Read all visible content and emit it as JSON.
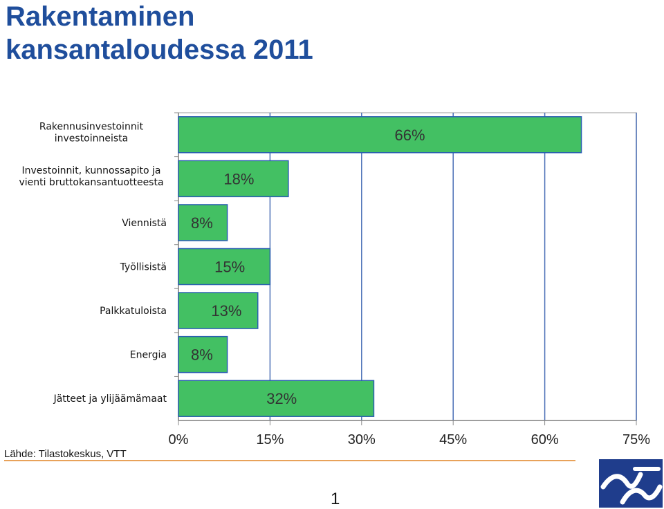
{
  "title": {
    "line1": "Rakentaminen",
    "line2": "kansantaloudessa 2011"
  },
  "source": "Lähde: Tilastokeskus, VTT",
  "page_number": "1",
  "logo": {
    "icon": "vtt-logo-icon",
    "color": "#1f3d8c"
  },
  "colors": {
    "bar": "#43c063",
    "bar_border": "#2a5fb0",
    "grid": "#4a6fb6",
    "title": "#1f4e9c"
  },
  "chart_data": {
    "type": "bar",
    "orientation": "horizontal",
    "categories": [
      "Rakennusinvestoinnit investoinneista",
      "Investoinnit, kunnossapito ja vienti bruttokansantuotteesta",
      "Viennistä",
      "Työllisistä",
      "Palkkatuloista",
      "Energia",
      "Jätteet ja ylijäämämaat"
    ],
    "category_lines": [
      [
        "Rakennusinvestoinnit",
        "investoinneista"
      ],
      [
        "Investoinnit, kunnossapito ja",
        "vienti bruttokansantuotteesta"
      ],
      [
        "Viennistä"
      ],
      [
        "Työllisistä"
      ],
      [
        "Palkkatuloista"
      ],
      [
        "Energia"
      ],
      [
        "Jätteet ja ylijäämämaat"
      ]
    ],
    "values": [
      66,
      18,
      8,
      15,
      13,
      8,
      32
    ],
    "data_labels": [
      "66%",
      "18%",
      "8%",
      "15%",
      "13%",
      "8%",
      "32%"
    ],
    "x_ticks": [
      0,
      15,
      30,
      45,
      60,
      75
    ],
    "x_tick_labels": [
      "0%",
      "15%",
      "30%",
      "45%",
      "60%",
      "75%"
    ],
    "xlim": [
      0,
      75
    ],
    "grid": true,
    "legend": "none"
  }
}
